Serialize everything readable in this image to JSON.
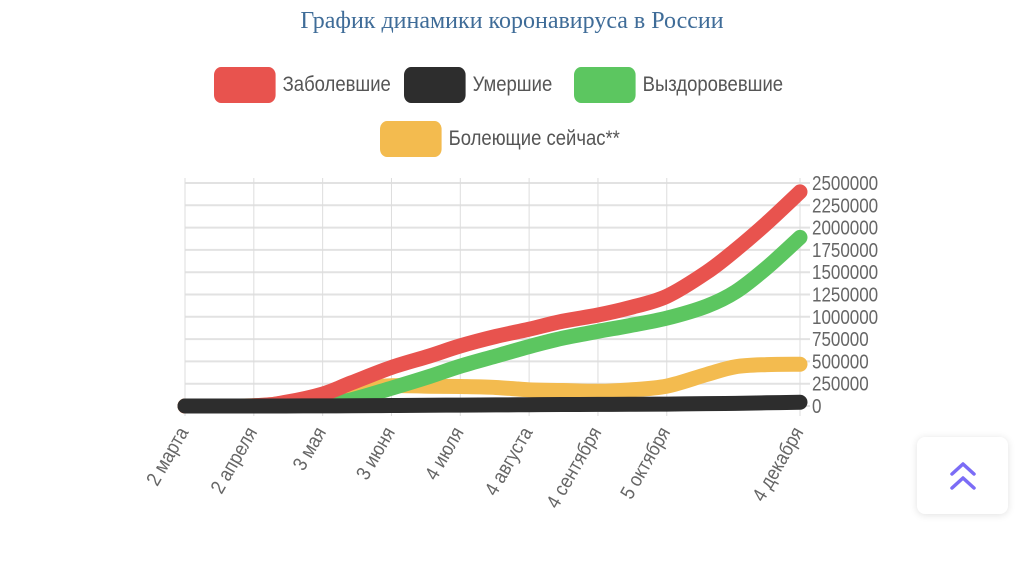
{
  "chart_data": {
    "type": "line",
    "title": "График динамики коронавируса в России",
    "xlabel": "",
    "ylabel": "",
    "x_unit": "days since 2 марта",
    "x_ticks": [
      {
        "day": 0,
        "label": "2 марта"
      },
      {
        "day": 31,
        "label": "2 апреля"
      },
      {
        "day": 62,
        "label": "3 мая"
      },
      {
        "day": 93,
        "label": "3 июня"
      },
      {
        "day": 124,
        "label": "4 июля"
      },
      {
        "day": 155,
        "label": "4 августа"
      },
      {
        "day": 186,
        "label": "4 сентября"
      },
      {
        "day": 217,
        "label": "5 октября"
      },
      {
        "day": 277,
        "label": "4 декабря"
      }
    ],
    "ylim": [
      0,
      2500000
    ],
    "y_ticks": [
      "0",
      "250000",
      "500000",
      "750000",
      "1000000",
      "1250000",
      "1500000",
      "1750000",
      "2000000",
      "2250000",
      "2500000"
    ],
    "grid": true,
    "legend_position": "top",
    "x": [
      0,
      31,
      45,
      62,
      75,
      93,
      110,
      124,
      140,
      155,
      170,
      186,
      200,
      217,
      235,
      248,
      262,
      277
    ],
    "series": [
      {
        "name": "Заболевшие",
        "color": "#e8534e",
        "values": [
          0,
          3000,
          40000,
          134000,
          260000,
          432000,
          560000,
          674000,
          780000,
          861000,
          950000,
          1020000,
          1100000,
          1230000,
          1500000,
          1750000,
          2050000,
          2400000
        ]
      },
      {
        "name": "Умершие",
        "color": "#2d2d2d",
        "values": [
          0,
          20,
          400,
          1300,
          2700,
          5200,
          8000,
          10300,
          12500,
          14400,
          16500,
          17800,
          19500,
          21700,
          26000,
          30000,
          36000,
          42000
        ]
      },
      {
        "name": "Выздоровевшие",
        "color": "#5cc660",
        "values": [
          0,
          100,
          3500,
          16000,
          70000,
          200000,
          330000,
          446000,
          560000,
          666000,
          760000,
          837000,
          900000,
          985000,
          1120000,
          1280000,
          1550000,
          1890000
        ]
      },
      {
        "name": "Болеющие сейчас**",
        "color": "#f3bb4f",
        "values": [
          0,
          2900,
          36000,
          117000,
          187000,
          227000,
          222000,
          218000,
          208000,
          181000,
          174000,
          165000,
          180000,
          223000,
          354000,
          440000,
          464000,
          468000
        ]
      }
    ]
  },
  "scroll_top_button": {
    "icon": "double-chevron-up-icon",
    "color": "#7b6cf6"
  }
}
